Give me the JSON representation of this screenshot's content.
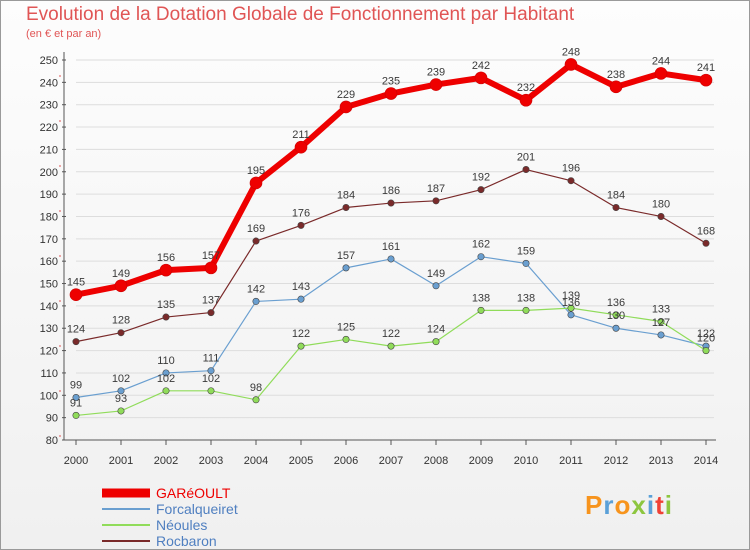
{
  "title": "Evolution de la Dotation Globale de Fonctionnement par Habitant",
  "subtitle": "(en € et par an)",
  "logo": {
    "text": "Proxiti",
    "colors": [
      "#f7941d",
      "#5aa0d8",
      "#f7941d",
      "#8dc63f",
      "#5aa0d8",
      "#ef4136",
      "#8dc63f"
    ]
  },
  "colors": {
    "title": "#e05555",
    "axis": "#555555",
    "grid": "#dddddd"
  },
  "chart_data": {
    "type": "line",
    "title": "Evolution de la Dotation Globale de Fonctionnement par Habitant",
    "ylabel": "(en € et par an)",
    "x": [
      2000,
      2001,
      2002,
      2003,
      2004,
      2005,
      2006,
      2007,
      2008,
      2009,
      2010,
      2011,
      2012,
      2013,
      2014
    ],
    "ylim": [
      80,
      250
    ],
    "yticks": [
      80,
      90,
      100,
      110,
      120,
      130,
      140,
      150,
      160,
      170,
      180,
      190,
      200,
      210,
      220,
      230,
      240,
      250
    ],
    "legend_position": "bottom-left",
    "series": [
      {
        "name": "GARéOULT",
        "color": "#ee0000",
        "width": 6,
        "values": [
          145,
          149,
          156,
          157,
          195,
          211,
          229,
          235,
          239,
          242,
          232,
          248,
          238,
          244,
          241
        ]
      },
      {
        "name": "Forcalqueiret",
        "color": "#6a9fd0",
        "width": 1.2,
        "values": [
          99,
          102,
          110,
          111,
          142,
          143,
          157,
          161,
          149,
          162,
          159,
          136,
          130,
          127,
          122
        ]
      },
      {
        "name": "Néoules",
        "color": "#90dc5a",
        "width": 1.2,
        "values": [
          91,
          93,
          102,
          102,
          98,
          122,
          125,
          122,
          124,
          138,
          138,
          139,
          136,
          133,
          120
        ]
      },
      {
        "name": "Rocbaron",
        "color": "#7a2a2a",
        "width": 1.2,
        "values": [
          124,
          128,
          135,
          137,
          169,
          176,
          184,
          186,
          187,
          192,
          201,
          196,
          184,
          180,
          168
        ]
      }
    ]
  }
}
